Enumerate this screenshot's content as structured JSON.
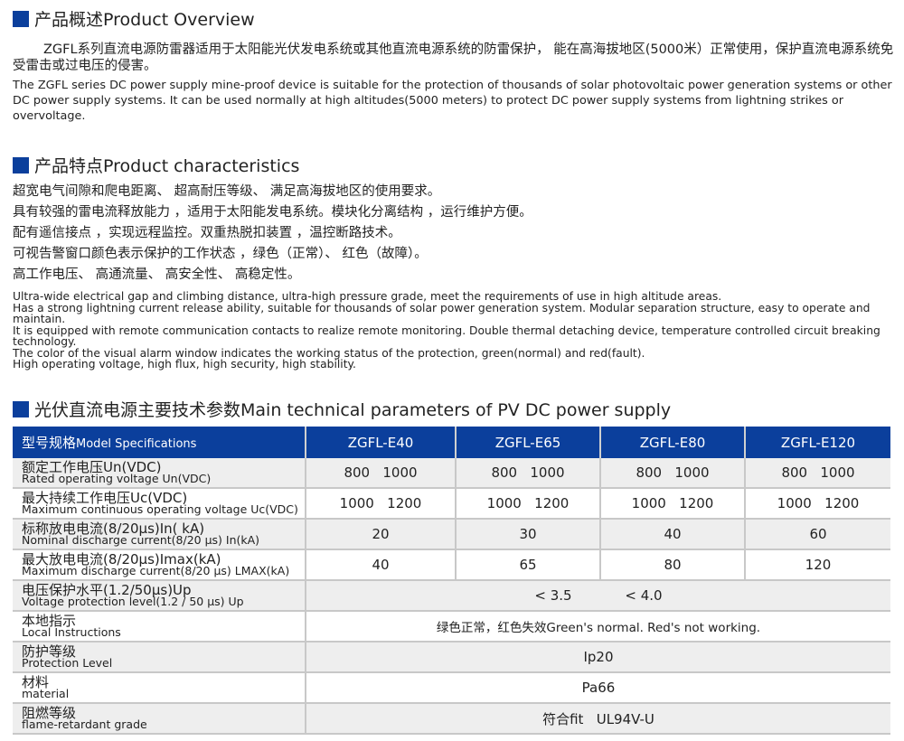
{
  "overview": {
    "heading": "产品概述Product Overview",
    "zh": "ZGFL系列直流电源防雷器适用于太阳能光伏发电系统或其他直流电源系统的防雷保护， 能在高海拔地区(5000米）正常使用，保护直流电源系统免受雷击或过电压的侵害。",
    "en": "The ZGFL series DC power supply mine-proof device is suitable for the protection of thousands of solar photovoltaic power generation systems or other DC power supply systems. It can be used normally at high altitudes(5000 meters) to protect DC power supply systems from lightning strikes or overvoltage."
  },
  "characteristics": {
    "heading": "产品特点Product characteristics",
    "zh": [
      "超宽电气间隙和爬电距离、 超高耐压等级、 满足高海拔地区的使用要求。",
      "具有较强的雷电流释放能力 ，适用于太阳能发电系统。模块化分离结构 ，运行维护方便。",
      "配有遥信接点 ，实现远程监控。双重热脱扣装置 ，温控断路技术。",
      "可视告警窗口颜色表示保护的工作状态 ，绿色（正常）、 红色（故障）。",
      "高工作电压、 高通流量、 高安全性、 高稳定性。"
    ],
    "en": [
      "Ultra-wide electrical gap and climbing distance, ultra-high pressure grade, meet the requirements of use in high altitude areas.",
      "Has a strong lightning current release ability, suitable for thousands of solar power generation system. Modular separation structure, easy to operate and maintain.",
      "It is equipped with remote communication contacts to realize remote monitoring. Double thermal detaching device, temperature controlled circuit breaking technology.",
      "The color of the visual alarm window indicates the working status of the protection, green(normal) and red(fault).",
      "High operating voltage, high flux, high security, high stability."
    ]
  },
  "params": {
    "heading": "光伏直流电源主要技术参数Main technical parameters of PV DC power supply",
    "header": {
      "zh": "型号规格",
      "en": "Model Specifications",
      "models": [
        "ZGFL-E40",
        "ZGFL-E65",
        "ZGFL-E80",
        "ZGFL-E120"
      ]
    },
    "rows": [
      {
        "zh": "额定工作电压Un(VDC)",
        "en": "Rated operating voltage Un(VDC)",
        "values": [
          "800   1000",
          "800   1000",
          "800   1000",
          "800   1000"
        ]
      },
      {
        "zh": "最大持续工作电压Uc(VDC)",
        "en": "Maximum continuous operating voltage Uc(VDC)",
        "values": [
          "1000   1200",
          "1000   1200",
          "1000   1200",
          "1000   1200"
        ]
      },
      {
        "zh": "标称放电电流(8/20μs)In( kA)",
        "en": "Nominal discharge current(8/20 μs) In(kA)",
        "values": [
          "20",
          "30",
          "40",
          "60"
        ]
      },
      {
        "zh": "最大放电电流(8/20μs)Imax(kA)",
        "en": "Maximum discharge current(8/20 μs) LMAX(kA)",
        "values": [
          "40",
          "65",
          "80",
          "120"
        ]
      },
      {
        "zh": "电压保护水平(1.2/50μs)Up",
        "en": "Voltage protection level(1.2 / 50 μs) Up",
        "merged": [
          "< 3.5",
          "< 4.0"
        ]
      },
      {
        "zh": "本地指示",
        "en": "Local Instructions",
        "merged": [
          "绿色正常，红色失效Green's normal. Red's not working."
        ]
      },
      {
        "zh": "防护等级",
        "en": "Protection Level",
        "merged": [
          "Ip20"
        ]
      },
      {
        "zh": "材料",
        "en": "material",
        "merged": [
          "Pa66"
        ]
      },
      {
        "zh": "阻燃等级",
        "en": "flame-retardant grade",
        "merged": [
          "符合fit   UL94V-U"
        ]
      }
    ]
  },
  "colors": {
    "accent": "#0b3f9c",
    "row_alt": "#eeeeee"
  }
}
